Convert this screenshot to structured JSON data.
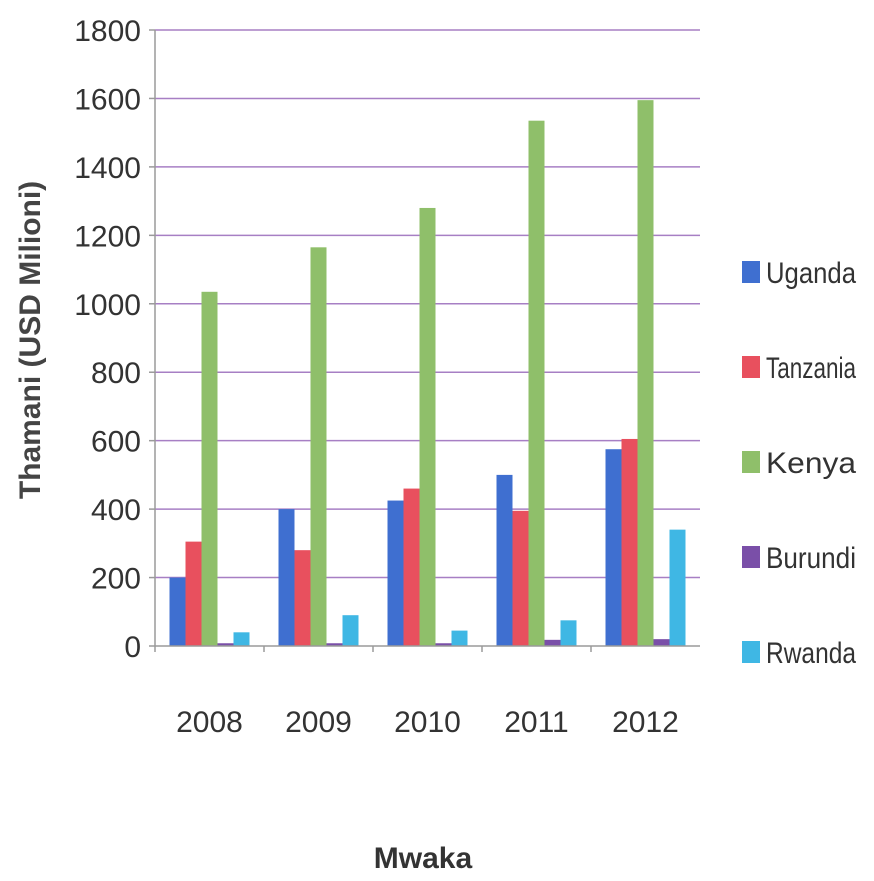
{
  "chart_data": {
    "type": "bar",
    "title": "",
    "xlabel": "Mwaka",
    "ylabel": "Thamani (USD Milioni)",
    "categories": [
      "2008",
      "2009",
      "2010",
      "2011",
      "2012"
    ],
    "ylim": [
      0,
      1800
    ],
    "yticks": [
      "0",
      "200",
      "400",
      "600",
      "800",
      "1000",
      "1200",
      "1400",
      "1600",
      "1800"
    ],
    "grid": true,
    "legend_position": "right",
    "series": [
      {
        "name": "Uganda",
        "color": "#3f6fd0",
        "values": [
          200,
          400,
          425,
          500,
          575
        ]
      },
      {
        "name": "Tanzania",
        "color": "#e8505e",
        "values": [
          305,
          280,
          460,
          395,
          605
        ]
      },
      {
        "name": "Kenya",
        "color": "#8fbf6a",
        "values": [
          1035,
          1165,
          1280,
          1535,
          1595
        ]
      },
      {
        "name": "Burundi",
        "color": "#7a4fa8",
        "values": [
          8,
          8,
          8,
          18,
          20
        ]
      },
      {
        "name": "Rwanda",
        "color": "#3fb7e4",
        "values": [
          40,
          90,
          45,
          75,
          340
        ]
      }
    ]
  }
}
